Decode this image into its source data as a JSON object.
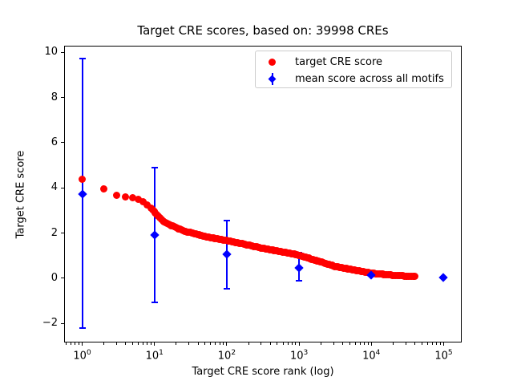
{
  "title": "Target CRE scores, based on: 39998 CREs",
  "colors": {
    "target_red": "#ff0000",
    "mean_blue": "#0000ff",
    "axis_black": "#000000",
    "legend_border": "#cccccc",
    "background": "#ffffff"
  },
  "legend": {
    "entries": [
      {
        "label": "target CRE score",
        "marker": "red-circle",
        "color": "#ff0000"
      },
      {
        "label": "mean score across all motifs",
        "marker": "blue-diamond-errorbar",
        "color": "#0000ff"
      }
    ]
  },
  "chart_data": {
    "type": "scatter",
    "title": "Target CRE scores, based on: 39998 CREs",
    "xlabel": "Target CRE score rank (log)",
    "ylabel": "Target CRE score",
    "x_scale": "log10",
    "xlim_log10": [
      -0.25,
      5.25
    ],
    "ylim": [
      -2.85,
      10.3
    ],
    "grid": false,
    "legend_position": "upper right",
    "yticks": [
      -2,
      0,
      2,
      4,
      6,
      8,
      10
    ],
    "ytick_labels": [
      "−2",
      "0",
      "2",
      "4",
      "6",
      "8",
      "10"
    ],
    "xticks": [
      {
        "log": 0,
        "base": "10",
        "exp": "0"
      },
      {
        "log": 1,
        "base": "10",
        "exp": "1"
      },
      {
        "log": 2,
        "base": "10",
        "exp": "2"
      },
      {
        "log": 3,
        "base": "10",
        "exp": "3"
      },
      {
        "log": 4,
        "base": "10",
        "exp": "4"
      },
      {
        "log": 5,
        "base": "10",
        "exp": "5"
      }
    ],
    "series": [
      {
        "name": "target CRE score",
        "color": "#ff0000",
        "marker": "circle",
        "note": "monotonically decreasing rank curve of 39998 CREs; anchor points [rank, score]",
        "anchors": [
          [
            1,
            4.4
          ],
          [
            2,
            3.95
          ],
          [
            3,
            3.68
          ],
          [
            4,
            3.6
          ],
          [
            5,
            3.56
          ],
          [
            6,
            3.5
          ],
          [
            7,
            3.38
          ],
          [
            8,
            3.25
          ],
          [
            9,
            3.1
          ],
          [
            10,
            2.95
          ],
          [
            11,
            2.78
          ],
          [
            13,
            2.52
          ],
          [
            16,
            2.38
          ],
          [
            25,
            2.1
          ],
          [
            50,
            1.85
          ],
          [
            100,
            1.67
          ],
          [
            320,
            1.32
          ],
          [
            1000,
            1.02
          ],
          [
            3160,
            0.52
          ],
          [
            10000,
            0.22
          ],
          [
            20000,
            0.13
          ],
          [
            39998,
            0.07
          ]
        ]
      },
      {
        "name": "mean score across all motifs",
        "color": "#0000ff",
        "marker": "diamond",
        "points": [
          {
            "rank": 1,
            "mean": 3.73,
            "lo": -2.21,
            "hi": 9.74
          },
          {
            "rank": 10,
            "mean": 1.92,
            "lo": -1.08,
            "hi": 4.89
          },
          {
            "rank": 100,
            "mean": 1.05,
            "lo": -0.46,
            "hi": 2.54
          },
          {
            "rank": 1000,
            "mean": 0.46,
            "lo": -0.13,
            "hi": 1.12
          },
          {
            "rank": 10000,
            "mean": 0.13,
            "lo": 0.05,
            "hi": 0.21
          },
          {
            "rank": 100000,
            "mean": 0.02,
            "lo": 0.02,
            "hi": 0.02
          }
        ]
      }
    ]
  }
}
